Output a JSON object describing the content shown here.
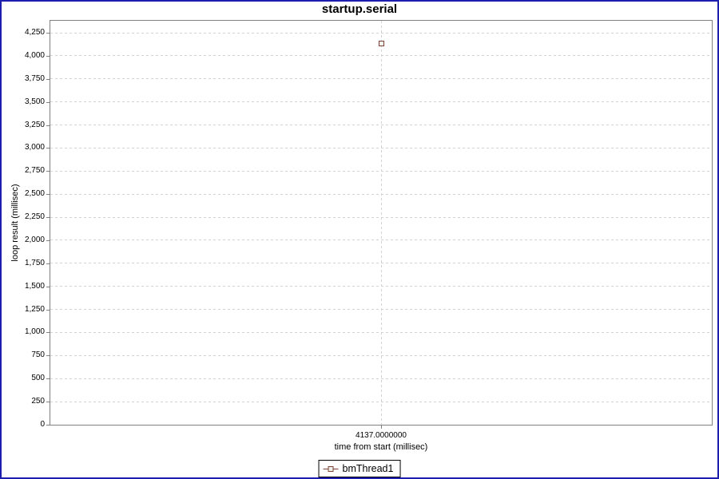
{
  "chart_data": {
    "type": "scatter",
    "title": "startup.serial",
    "xlabel": "time from start (millisec)",
    "ylabel": "loop result (millisec)",
    "series": [
      {
        "name": "bmThread1",
        "points": [
          {
            "x": 4137.0,
            "y": 4137
          }
        ]
      }
    ],
    "xticks": [
      {
        "v": 4137.0,
        "label": "4137.0000000"
      }
    ],
    "yticks": [
      {
        "v": 0,
        "label": "0"
      },
      {
        "v": 250,
        "label": "250"
      },
      {
        "v": 500,
        "label": "500"
      },
      {
        "v": 750,
        "label": "750"
      },
      {
        "v": 1000,
        "label": "1,000"
      },
      {
        "v": 1250,
        "label": "1,250"
      },
      {
        "v": 1500,
        "label": "1,500"
      },
      {
        "v": 1750,
        "label": "1,750"
      },
      {
        "v": 2000,
        "label": "2,000"
      },
      {
        "v": 2250,
        "label": "2,250"
      },
      {
        "v": 2500,
        "label": "2,500"
      },
      {
        "v": 2750,
        "label": "2,750"
      },
      {
        "v": 3000,
        "label": "3,000"
      },
      {
        "v": 3250,
        "label": "3,250"
      },
      {
        "v": 3500,
        "label": "3,500"
      },
      {
        "v": 3750,
        "label": "3,750"
      },
      {
        "v": 4000,
        "label": "4,000"
      },
      {
        "v": 4250,
        "label": "4,250"
      }
    ],
    "ylim": [
      0,
      4380
    ],
    "xlim": [
      4136.5,
      4137.5
    ],
    "grid": "dashed",
    "legend_position": "bottom",
    "colors": {
      "frame_border": "#1e1eae",
      "plot_border": "#808080",
      "gridline": "#d2d2d2",
      "series_stroke": "#7c4036",
      "series_fill": "#eef4ec",
      "text": "#000000",
      "background": "#ffffff"
    }
  }
}
